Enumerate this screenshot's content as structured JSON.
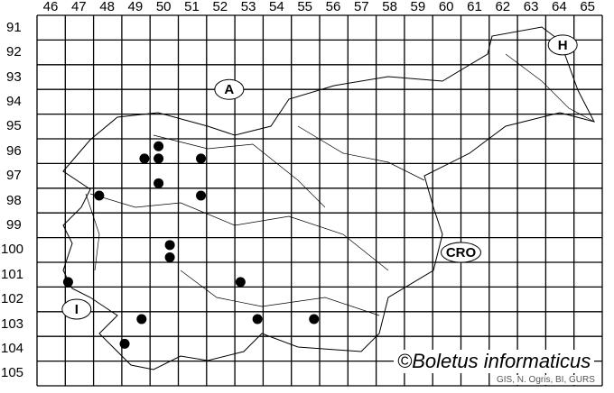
{
  "map": {
    "columns": [
      "46",
      "47",
      "48",
      "49",
      "50",
      "51",
      "52",
      "53",
      "54",
      "55",
      "56",
      "57",
      "58",
      "59",
      "60",
      "61",
      "62",
      "63",
      "64",
      "65"
    ],
    "rows": [
      "91",
      "92",
      "93",
      "94",
      "95",
      "96",
      "97",
      "98",
      "99",
      "100",
      "101",
      "102",
      "103",
      "104",
      "105"
    ],
    "region_labels": [
      {
        "text": "A",
        "col": 52.8,
        "row": 94.0
      },
      {
        "text": "H",
        "col": 64.6,
        "row": 92.2
      },
      {
        "text": "CRO",
        "col": 61.0,
        "row": 100.6
      },
      {
        "text": "I",
        "col": 47.4,
        "row": 102.9
      }
    ],
    "records": [
      {
        "col": 50.3,
        "row": 96.3
      },
      {
        "col": 49.8,
        "row": 96.8
      },
      {
        "col": 50.3,
        "row": 96.8
      },
      {
        "col": 51.8,
        "row": 96.8
      },
      {
        "col": 50.3,
        "row": 97.8
      },
      {
        "col": 48.2,
        "row": 98.3
      },
      {
        "col": 51.8,
        "row": 98.3
      },
      {
        "col": 50.7,
        "row": 100.3
      },
      {
        "col": 50.7,
        "row": 100.8
      },
      {
        "col": 47.1,
        "row": 101.8
      },
      {
        "col": 53.2,
        "row": 101.8
      },
      {
        "col": 49.7,
        "row": 103.3
      },
      {
        "col": 53.8,
        "row": 103.3
      },
      {
        "col": 55.8,
        "row": 103.3
      },
      {
        "col": 49.1,
        "row": 104.3
      }
    ],
    "record_color": "#000000",
    "copyright": "©Boletus informaticus",
    "credit": "GIS, N. Ogris, BI, GURS"
  }
}
